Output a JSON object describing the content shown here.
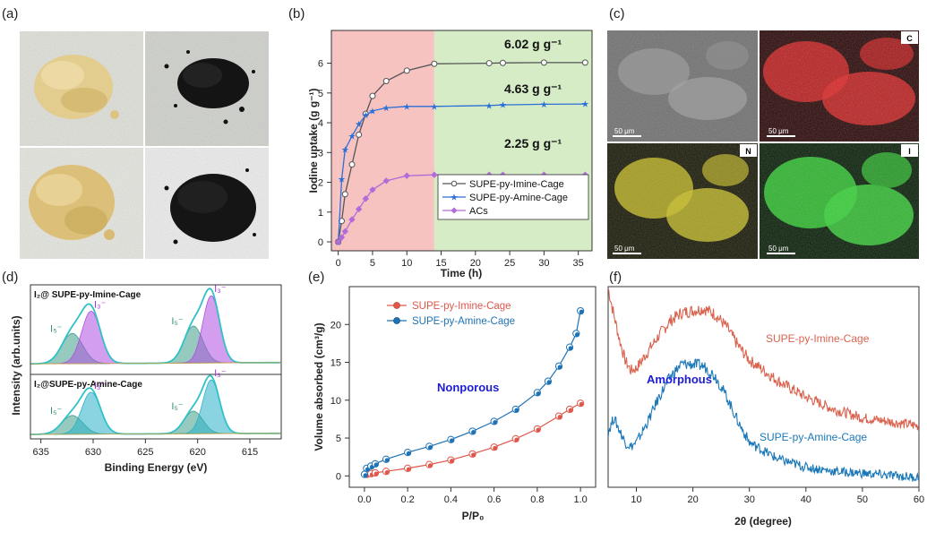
{
  "panel_labels": [
    "(a)",
    "(b)",
    "(c)",
    "(d)",
    "(e)",
    "(f)"
  ],
  "panel_c": {
    "scale_label": "50 μm",
    "maps": [
      {
        "element": "",
        "color": "#8a8a8a"
      },
      {
        "element": "C",
        "color": "#e02020"
      },
      {
        "element": "N",
        "color": "#d8d020"
      },
      {
        "element": "I",
        "color": "#30d030"
      }
    ]
  },
  "chart_data": [
    {
      "id": "b",
      "type": "line",
      "xlabel": "Time (h)",
      "ylabel": "Iodine uptake (g g⁻¹)",
      "xlim": [
        -1,
        37
      ],
      "ylim": [
        -0.3,
        7.1
      ],
      "xticks": [
        0,
        5,
        10,
        15,
        20,
        25,
        30,
        35
      ],
      "yticks": [
        0,
        1,
        2,
        3,
        4,
        5,
        6
      ],
      "shaded_regions": [
        {
          "x": [
            0,
            14
          ],
          "color": "#f6c3c1"
        },
        {
          "x": [
            14,
            37
          ],
          "color": "#d5ecc6"
        }
      ],
      "series": [
        {
          "name": "SUPE-py-Imine-Cage",
          "color": "#555555",
          "marker": "circle",
          "x": [
            0,
            0.5,
            1,
            2,
            3,
            4,
            5,
            7,
            10,
            14,
            22,
            24,
            30,
            36
          ],
          "y": [
            0,
            0.7,
            1.6,
            2.6,
            3.6,
            4.3,
            4.9,
            5.4,
            5.75,
            5.98,
            6.0,
            6.01,
            6.02,
            6.02
          ]
        },
        {
          "name": "SUPE-py-Amine-Cage",
          "color": "#2c6fd6",
          "marker": "star",
          "x": [
            0,
            0.5,
            1,
            2,
            3,
            4,
            5,
            7,
            10,
            14,
            22,
            24,
            30,
            36
          ],
          "y": [
            0,
            2.1,
            3.1,
            3.55,
            3.95,
            4.25,
            4.4,
            4.5,
            4.55,
            4.55,
            4.58,
            4.6,
            4.62,
            4.63
          ]
        },
        {
          "name": "ACs",
          "color": "#b36bdb",
          "marker": "diamond",
          "x": [
            0,
            0.5,
            1,
            2,
            3,
            4,
            5,
            7,
            10,
            14,
            22,
            24,
            30,
            36
          ],
          "y": [
            0,
            0.15,
            0.35,
            0.75,
            1.1,
            1.45,
            1.75,
            2.05,
            2.22,
            2.25,
            2.25,
            2.25,
            2.25,
            2.25
          ]
        }
      ],
      "annotations": [
        "6.02 g g⁻¹",
        "4.63 g g⁻¹",
        "2.25 g g⁻¹"
      ]
    },
    {
      "id": "d",
      "type": "line",
      "xlabel": "Binding Energy (eV)",
      "ylabel": "Intensity (arb.units)",
      "xlim": [
        636,
        612
      ],
      "xticks": [
        635,
        630,
        625,
        620,
        615
      ],
      "subplots": [
        {
          "title": "I₂@ SUPE-py-Imine-Cage",
          "peaks": [
            {
              "label": "I₅⁻",
              "center": 632.0,
              "height": 0.45,
              "width": 1.0,
              "color": "#3f9f8a"
            },
            {
              "label": "I₃⁻",
              "center": 630.2,
              "height": 0.78,
              "width": 0.9,
              "color": "#b04fe0"
            },
            {
              "label": "I₅⁻",
              "center": 620.4,
              "height": 0.55,
              "width": 0.9,
              "color": "#3f9f8a"
            },
            {
              "label": "I₃⁻",
              "center": 618.7,
              "height": 1.0,
              "width": 0.8,
              "color": "#b04fe0"
            }
          ]
        },
        {
          "title": "I₂@SUPE-py-Amine-Cage",
          "peaks": [
            {
              "label": "I₅⁻",
              "center": 632.0,
              "height": 0.35,
              "width": 1.0,
              "color": "#3f9f8a"
            },
            {
              "label": "I₃⁻",
              "center": 630.2,
              "height": 0.78,
              "width": 0.9,
              "color": "#2ab0c8"
            },
            {
              "label": "I₅⁻",
              "center": 620.4,
              "height": 0.42,
              "width": 0.9,
              "color": "#3f9f8a"
            },
            {
              "label": "I₃⁻",
              "center": 618.7,
              "height": 1.0,
              "width": 0.8,
              "color": "#2ab0c8"
            }
          ]
        }
      ]
    },
    {
      "id": "e",
      "type": "scatter",
      "xlabel": "P/P₀",
      "ylabel": "Volume absorbed (cm³/g)",
      "xlim": [
        -0.07,
        1.07
      ],
      "ylim": [
        -1.5,
        25
      ],
      "xticks": [
        0.0,
        0.2,
        0.4,
        0.6,
        0.8,
        1.0
      ],
      "yticks": [
        0,
        5,
        10,
        15,
        20
      ],
      "annotation": "Nonporous",
      "series": [
        {
          "name": "SUPE-py-Imine-Cage",
          "color": "#e0574b",
          "x": [
            0.01,
            0.03,
            0.05,
            0.1,
            0.2,
            0.3,
            0.4,
            0.5,
            0.6,
            0.7,
            0.8,
            0.9,
            0.95,
            1.0
          ],
          "y": [
            0.2,
            0.3,
            0.4,
            0.6,
            1.0,
            1.5,
            2.1,
            2.9,
            3.8,
            4.9,
            6.2,
            7.9,
            8.8,
            9.6
          ]
        },
        {
          "name": "SUPE-py-Amine-Cage",
          "color": "#1f73b5",
          "x": [
            0.0,
            0.01,
            0.03,
            0.05,
            0.1,
            0.2,
            0.3,
            0.4,
            0.5,
            0.6,
            0.7,
            0.8,
            0.85,
            0.9,
            0.95,
            0.98,
            1.0
          ],
          "y": [
            0.2,
            1.0,
            1.3,
            1.6,
            2.2,
            3.1,
            3.9,
            4.8,
            5.9,
            7.2,
            8.8,
            11.0,
            12.5,
            14.5,
            17.0,
            18.8,
            21.8
          ]
        }
      ]
    },
    {
      "id": "f",
      "type": "line",
      "xlabel": "2θ (degree)",
      "xlim": [
        5,
        60
      ],
      "xticks": [
        10,
        20,
        30,
        40,
        50,
        60
      ],
      "series": [
        {
          "name": "SUPE-py-Imine-Cage",
          "color": "#d9634f",
          "x": [
            5,
            6,
            7,
            8,
            9,
            10,
            12,
            14,
            16,
            18,
            20,
            22,
            24,
            26,
            28,
            30,
            35,
            40,
            45,
            50,
            55,
            60
          ],
          "y": [
            0.95,
            0.82,
            0.7,
            0.6,
            0.55,
            0.56,
            0.64,
            0.72,
            0.79,
            0.83,
            0.84,
            0.85,
            0.82,
            0.76,
            0.67,
            0.6,
            0.5,
            0.42,
            0.36,
            0.32,
            0.3,
            0.28
          ]
        },
        {
          "name": "SUPE-py-Amine-Cage",
          "color": "#1b78b8",
          "x": [
            5,
            6,
            7,
            8,
            9,
            10,
            12,
            14,
            16,
            18,
            20,
            22,
            24,
            26,
            28,
            30,
            35,
            40,
            45,
            50,
            55,
            60
          ],
          "y": [
            0.25,
            0.32,
            0.26,
            0.2,
            0.18,
            0.2,
            0.3,
            0.42,
            0.52,
            0.58,
            0.58,
            0.57,
            0.52,
            0.42,
            0.3,
            0.2,
            0.12,
            0.08,
            0.06,
            0.05,
            0.04,
            0.03
          ]
        }
      ],
      "annotations": [
        "Amorphous"
      ]
    }
  ]
}
